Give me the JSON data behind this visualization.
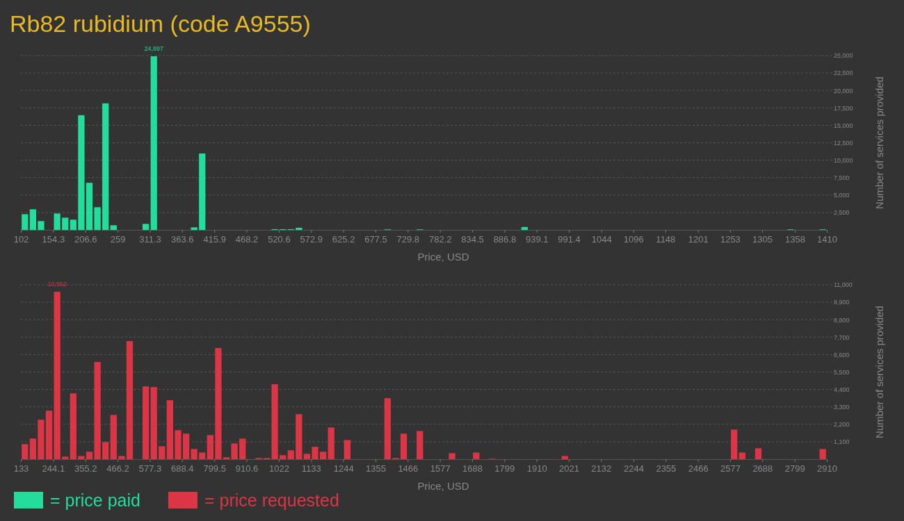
{
  "chart_data": [
    {
      "type": "histogram",
      "title": "Rb82 rubidium (code A9555)",
      "xlabel": "Price, USD",
      "ylabel": "Number of services provided",
      "bins": [
        102,
        115.08,
        128.16,
        141.24,
        154.32,
        167.4,
        180.48,
        193.56,
        206.64,
        219.72,
        232.8,
        245.88,
        258.96,
        272.04,
        285.12,
        298.2,
        311.28,
        324.36,
        337.44,
        350.52,
        363.6,
        376.68,
        389.76,
        402.84,
        415.92,
        429,
        442.08,
        455.16,
        468.24,
        481.32,
        494.4,
        507.48,
        520.56,
        533.64,
        546.72,
        559.8,
        572.88,
        585.96,
        599.04,
        612.12,
        625.2,
        638.28,
        651.36,
        664.44,
        677.52,
        690.6,
        703.68,
        716.76,
        729.84,
        742.92,
        756,
        769.08,
        782.16,
        795.24,
        808.32,
        821.4,
        834.48,
        847.56,
        860.64,
        873.72,
        886.8,
        899.88,
        912.96,
        926.04,
        939.12,
        952.2,
        965.28,
        978.36,
        991.44,
        1004.52,
        1017.6,
        1030.68,
        1043.76,
        1056.84,
        1069.92,
        1083,
        1096.08,
        1109.16,
        1122.24,
        1135.32,
        1148.4,
        1161.48,
        1174.56,
        1187.64,
        1200.72,
        1213.8,
        1226.88,
        1239.96,
        1253.04,
        1266.12,
        1279.2,
        1292.28,
        1305.36,
        1318.44,
        1331.52,
        1344.6,
        1357.68,
        1370.76,
        1383.84,
        1396.92,
        1410
      ],
      "series": [
        {
          "name": "= price paid",
          "color": "#22dd9b",
          "values": [
            2260,
            2960,
            1270,
            0,
            2360,
            1760,
            1470,
            16450,
            6760,
            3260,
            18150,
            670,
            0,
            0,
            0,
            870,
            24897,
            0,
            0,
            0,
            0,
            370,
            10960,
            0,
            0,
            0,
            0,
            0,
            0,
            0,
            0,
            100,
            100,
            100,
            310,
            0,
            0,
            0,
            0,
            0,
            0,
            0,
            0,
            0,
            0,
            80,
            0,
            0,
            0,
            80,
            0,
            0,
            0,
            0,
            0,
            0,
            0,
            0,
            0,
            0,
            0,
            0,
            420,
            0,
            0,
            0,
            0,
            0,
            0,
            0,
            0,
            0,
            0,
            0,
            0,
            0,
            0,
            0,
            0,
            0,
            0,
            0,
            0,
            0,
            0,
            0,
            0,
            0,
            0,
            0,
            0,
            0,
            0,
            0,
            0,
            80,
            0,
            0,
            0,
            80
          ],
          "value_labels": [
            null,
            null,
            null,
            null,
            null,
            null,
            null,
            null,
            null,
            null,
            null,
            null,
            null,
            null,
            null,
            null,
            "24,897",
            null,
            null,
            null,
            null,
            null,
            null,
            null,
            null,
            null,
            null,
            null,
            null,
            null,
            null,
            null,
            null,
            null,
            null,
            null,
            null,
            null,
            null,
            null,
            null,
            null,
            null,
            null,
            null,
            null,
            null,
            null,
            null,
            null,
            null,
            null,
            null,
            null,
            null,
            null,
            null,
            null,
            null,
            null,
            null,
            null,
            null,
            null,
            null,
            null,
            null,
            null,
            null,
            null,
            null,
            null,
            null,
            null,
            null,
            null,
            null,
            null,
            null,
            null,
            null,
            null,
            null,
            null,
            null,
            null,
            null,
            null,
            null,
            null,
            null,
            null,
            null,
            null,
            null,
            null,
            null,
            null,
            null,
            null
          ]
        }
      ],
      "xlim": [
        102,
        1410
      ],
      "xticks": [
        102,
        154.3,
        206.6,
        259,
        311.3,
        363.6,
        415.9,
        468.2,
        520.6,
        572.9,
        625.2,
        677.5,
        729.8,
        782.2,
        834.5,
        886.8,
        939.1,
        991.4,
        1044,
        1096,
        1148,
        1201,
        1253,
        1305,
        1358,
        1410
      ],
      "ylim": [
        0,
        25000
      ],
      "yticks": [
        {
          "value": 2500,
          "label": "2,500"
        },
        {
          "value": 5000,
          "label": "5,000"
        },
        {
          "value": 7500,
          "label": "7,500"
        },
        {
          "value": 10000,
          "label": "10,000"
        },
        {
          "value": 12500,
          "label": "12,500"
        },
        {
          "value": 15000,
          "label": "15,000"
        },
        {
          "value": 17500,
          "label": "17,500"
        },
        {
          "value": 20000,
          "label": "20,000"
        },
        {
          "value": 22500,
          "label": "22,500"
        },
        {
          "value": 25000,
          "label": "25,000"
        }
      ],
      "grid": "y",
      "legend": "bottom left"
    },
    {
      "type": "histogram",
      "xlabel": "Price, USD",
      "ylabel": "Number of services provided",
      "bins": [
        133,
        160.77,
        188.54,
        216.31,
        244.08,
        271.85,
        299.62,
        327.39,
        355.16,
        382.93,
        410.7,
        438.47,
        466.24,
        494.01,
        521.78,
        549.55,
        577.32,
        605.09,
        632.86,
        660.63,
        688.4,
        716.17,
        743.94,
        771.71,
        799.48,
        827.25,
        855.02,
        882.79,
        910.56,
        938.33,
        966.1,
        993.87,
        1021.64,
        1049.41,
        1077.18,
        1104.95,
        1132.72,
        1160.49,
        1188.26,
        1216.03,
        1243.8,
        1271.57,
        1299.34,
        1327.11,
        1354.88,
        1382.65,
        1410.42,
        1438.19,
        1465.96,
        1493.73,
        1521.5,
        1549.27,
        1577.04,
        1604.81,
        1632.58,
        1660.35,
        1688.12,
        1715.89,
        1743.66,
        1771.43,
        1799.2,
        1826.97,
        1854.74,
        1882.51,
        1910.28,
        1938.05,
        1965.82,
        1993.59,
        2021.36,
        2049.13,
        2076.9,
        2104.67,
        2132.44,
        2160.21,
        2187.98,
        2215.75,
        2243.52,
        2271.29,
        2299.06,
        2326.83,
        2354.6,
        2382.37,
        2410.14,
        2437.91,
        2465.68,
        2493.45,
        2521.22,
        2548.99,
        2576.76,
        2604.53,
        2632.3,
        2660.07,
        2687.84,
        2715.61,
        2743.38,
        2771.15,
        2798.92,
        2826.69,
        2854.46,
        2882.23,
        2910
      ],
      "series": [
        {
          "name": "= price requested",
          "color": "#dc3545",
          "values": [
            950,
            1300,
            2490,
            3060,
            10562,
            160,
            4150,
            200,
            470,
            6130,
            1080,
            2790,
            200,
            7450,
            0,
            4590,
            4550,
            820,
            3720,
            1830,
            1610,
            640,
            420,
            1520,
            7010,
            120,
            990,
            1300,
            0,
            70,
            70,
            4730,
            250,
            560,
            2840,
            340,
            780,
            470,
            2000,
            0,
            1210,
            0,
            0,
            0,
            0,
            3850,
            70,
            1610,
            0,
            1780,
            0,
            0,
            0,
            380,
            0,
            0,
            420,
            0,
            30,
            0,
            0,
            0,
            0,
            0,
            0,
            0,
            0,
            200,
            0,
            0,
            0,
            0,
            0,
            0,
            0,
            0,
            0,
            0,
            0,
            0,
            0,
            0,
            0,
            0,
            0,
            0,
            0,
            0,
            1870,
            420,
            0,
            690,
            0,
            0,
            0,
            0,
            0,
            0,
            0,
            640
          ],
          "value_labels": [
            null,
            null,
            null,
            null,
            "10,562",
            null,
            null,
            null,
            null,
            null,
            null,
            null,
            null,
            null,
            null,
            null,
            null,
            null,
            null,
            null,
            null,
            null,
            null,
            null,
            null,
            null,
            null,
            null,
            null,
            null,
            null,
            null,
            null,
            null,
            null,
            null,
            null,
            null,
            null,
            null,
            null,
            null,
            null,
            null,
            null,
            null,
            null,
            null,
            null,
            null,
            null,
            null,
            null,
            null,
            null,
            null,
            null,
            null,
            null,
            null,
            null,
            null,
            null,
            null,
            null,
            null,
            null,
            null,
            null,
            null,
            null,
            null,
            null,
            null,
            null,
            null,
            null,
            null,
            null,
            null,
            null,
            null,
            null,
            null,
            null,
            null,
            null,
            null,
            null,
            null,
            null,
            null,
            null,
            null,
            null,
            null,
            null,
            null,
            null,
            null
          ]
        }
      ],
      "xlim": [
        133,
        2910
      ],
      "xticks": [
        133,
        244.1,
        355.2,
        466.2,
        577.3,
        688.4,
        799.5,
        910.6,
        1022,
        1133,
        1244,
        1355,
        1466,
        1577,
        1688,
        1799,
        1910,
        2021,
        2132,
        2244,
        2355,
        2466,
        2577,
        2688,
        2799,
        2910
      ],
      "ylim": [
        0,
        11000
      ],
      "yticks": [
        {
          "value": 1100,
          "label": "1,100"
        },
        {
          "value": 2200,
          "label": "2,200"
        },
        {
          "value": 3300,
          "label": "3,300"
        },
        {
          "value": 4400,
          "label": "4,400"
        },
        {
          "value": 5500,
          "label": "5,500"
        },
        {
          "value": 6600,
          "label": "6,600"
        },
        {
          "value": 7700,
          "label": "7,700"
        },
        {
          "value": 8800,
          "label": "8,800"
        },
        {
          "value": 9900,
          "label": "9,900"
        },
        {
          "value": 11000,
          "label": "11,000"
        }
      ],
      "grid": "y",
      "legend": "bottom left"
    }
  ]
}
